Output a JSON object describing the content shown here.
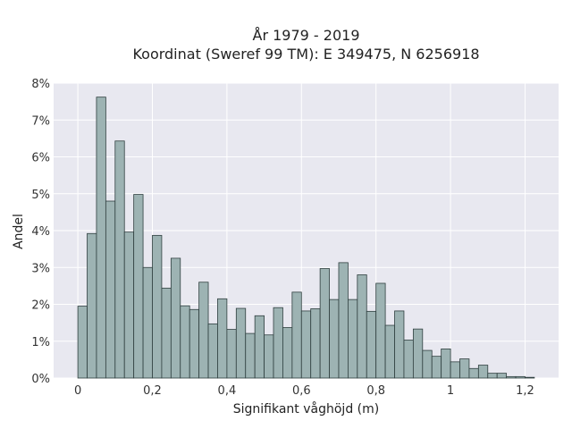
{
  "chart_data": {
    "type": "bar",
    "title": "År 1979 - 2019",
    "subtitle": "Koordinat (Sweref 99 TM): E 349475, N 6256918",
    "xlabel": "Signifikant våghöjd (m)",
    "ylabel": "Andel",
    "xlim": [
      -0.065,
      1.29
    ],
    "ylim": [
      0,
      8
    ],
    "grid": true,
    "bin_width": 0.025,
    "x_ticks": [
      0,
      0.2,
      0.4,
      0.6,
      0.8,
      1,
      1.2
    ],
    "x_tick_labels": [
      "0",
      "0,2",
      "0,4",
      "0,6",
      "0,8",
      "1",
      "1,2"
    ],
    "y_ticks": [
      0,
      1,
      2,
      3,
      4,
      5,
      6,
      7,
      8
    ],
    "y_tick_labels": [
      "0%",
      "1%",
      "2%",
      "3%",
      "4%",
      "5%",
      "6%",
      "7%",
      "8%"
    ],
    "bar_left_edges": [
      0,
      0.025,
      0.05,
      0.075,
      0.1,
      0.125,
      0.15,
      0.175,
      0.2,
      0.225,
      0.25,
      0.275,
      0.3,
      0.325,
      0.35,
      0.375,
      0.4,
      0.425,
      0.45,
      0.475,
      0.5,
      0.525,
      0.55,
      0.575,
      0.6,
      0.625,
      0.65,
      0.675,
      0.7,
      0.725,
      0.75,
      0.775,
      0.8,
      0.825,
      0.85,
      0.875,
      0.9,
      0.925,
      0.95,
      0.975,
      1.0,
      1.025,
      1.05,
      1.075,
      1.1,
      1.125,
      1.15,
      1.175,
      1.2,
      1.225
    ],
    "values": [
      1.95,
      3.92,
      7.62,
      4.8,
      6.43,
      3.96,
      4.98,
      3.0,
      3.87,
      2.44,
      3.25,
      1.96,
      1.86,
      2.6,
      1.47,
      2.15,
      1.32,
      1.89,
      1.21,
      1.69,
      1.17,
      1.91,
      1.37,
      2.33,
      1.82,
      1.88,
      2.97,
      2.13,
      3.13,
      2.13,
      2.8,
      1.81,
      2.57,
      1.43,
      1.82,
      1.03,
      1.33,
      0.75,
      0.59,
      0.79,
      0.44,
      0.52,
      0.26,
      0.35,
      0.13,
      0.13,
      0.04,
      0.04,
      0.02,
      0.0
    ],
    "colors": {
      "bar_fill": "#9db3b3",
      "bar_stroke": "#2f3f3f",
      "plot_bg": "#e8e8f0",
      "grid": "#ffffff"
    }
  }
}
